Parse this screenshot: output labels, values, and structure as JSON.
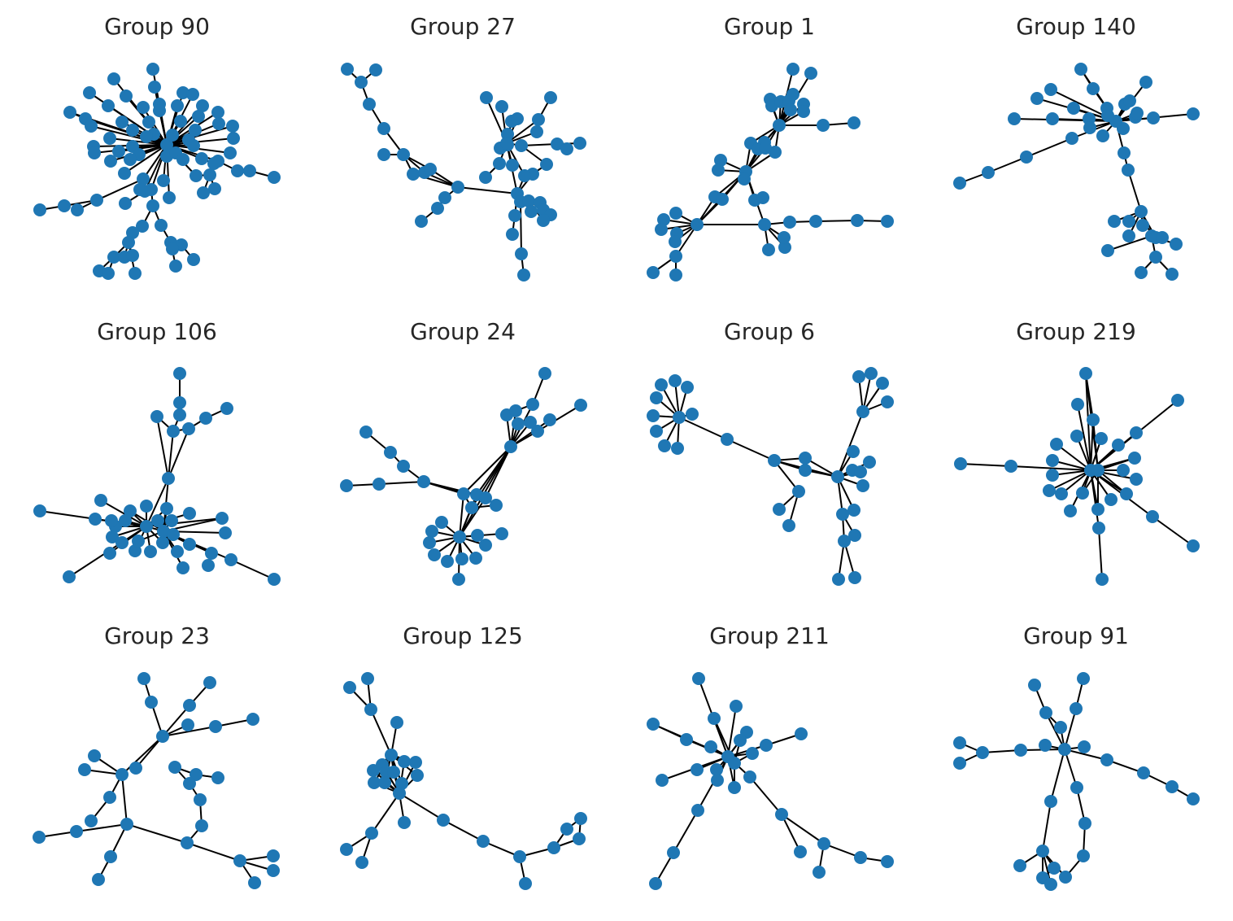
{
  "node_color": "#1f77b4",
  "edge_color": "#000000",
  "panels": [
    {
      "title": "Group 90"
    },
    {
      "title": "Group 27"
    },
    {
      "title": "Group 1"
    },
    {
      "title": "Group 140"
    },
    {
      "title": "Group 106"
    },
    {
      "title": "Group 24"
    },
    {
      "title": "Group 6"
    },
    {
      "title": "Group 219"
    },
    {
      "title": "Group 23"
    },
    {
      "title": "Group 125"
    },
    {
      "title": "Group 211"
    },
    {
      "title": "Group 91"
    }
  ]
}
